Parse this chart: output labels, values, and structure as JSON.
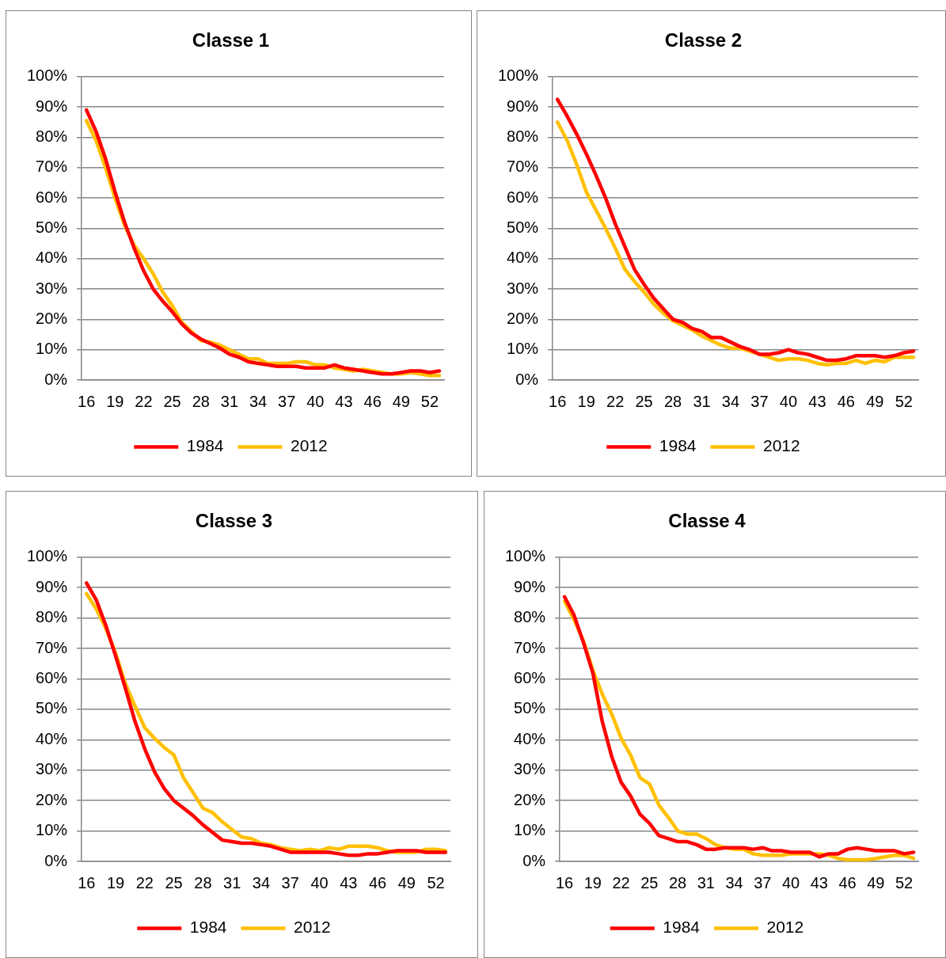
{
  "chart_data": [
    {
      "type": "line",
      "title": "Classe 1",
      "categories": [
        "16",
        null,
        null,
        "19",
        null,
        null,
        "22",
        null,
        null,
        "25",
        null,
        null,
        "28",
        null,
        null,
        "31",
        null,
        null,
        "34",
        null,
        null,
        "37",
        null,
        null,
        "40",
        null,
        null,
        "43",
        null,
        null,
        "46",
        null,
        null,
        "49",
        null,
        null,
        "52",
        null
      ],
      "series": [
        {
          "name": "1984",
          "color": "#ff0000",
          "values": [
            89,
            82,
            73,
            62,
            52,
            43.5,
            36,
            30,
            26,
            22.5,
            18.5,
            15.5,
            13.5,
            12,
            10.5,
            8.5,
            7.5,
            6,
            5.5,
            5,
            4.5,
            4.5,
            4.5,
            4,
            4,
            4,
            5,
            4,
            3.5,
            3,
            2.5,
            2,
            2,
            2.5,
            3,
            3,
            2.5,
            3
          ]
        },
        {
          "name": "2012",
          "color": "#ffc000",
          "values": [
            85.5,
            79,
            70,
            60,
            51,
            44.5,
            40,
            35,
            29,
            24.5,
            19,
            16,
            13,
            12.5,
            11.5,
            10,
            8.5,
            7,
            7,
            5.5,
            5.5,
            5.5,
            6,
            6,
            5,
            5,
            4,
            3.5,
            3,
            3.5,
            3,
            2.5,
            2,
            2,
            2.5,
            2,
            1.5,
            1.5
          ]
        }
      ],
      "ylim": [
        0,
        100
      ],
      "yticks": [
        {
          "value": 0,
          "label": "0%"
        },
        {
          "value": 10,
          "label": "10%"
        },
        {
          "value": 20,
          "label": "20%"
        },
        {
          "value": 30,
          "label": "30%"
        },
        {
          "value": 40,
          "label": "40%"
        },
        {
          "value": 50,
          "label": "50%"
        },
        {
          "value": 60,
          "label": "60%"
        },
        {
          "value": 70,
          "label": "70%"
        },
        {
          "value": 80,
          "label": "80%"
        },
        {
          "value": 90,
          "label": "90%"
        },
        {
          "value": 100,
          "label": "100%"
        }
      ],
      "grid": "y",
      "legend": "bottom"
    },
    {
      "type": "line",
      "title": "Classe 2",
      "categories": [
        "16",
        null,
        null,
        "19",
        null,
        null,
        "22",
        null,
        null,
        "25",
        null,
        null,
        "28",
        null,
        null,
        "31",
        null,
        null,
        "34",
        null,
        null,
        "37",
        null,
        null,
        "40",
        null,
        null,
        "43",
        null,
        null,
        "46",
        null,
        null,
        "49",
        null,
        null,
        "52",
        null
      ],
      "series": [
        {
          "name": "1984",
          "color": "#ff0000",
          "values": [
            92.5,
            87,
            81,
            74.5,
            67.5,
            60,
            51.5,
            44,
            36.5,
            31.5,
            27,
            23.5,
            20,
            19,
            17,
            16,
            14,
            14,
            12.5,
            11,
            10,
            8.5,
            8.5,
            9,
            10,
            9,
            8.5,
            7.5,
            6.5,
            6.5,
            7,
            8,
            8,
            8,
            7.5,
            8,
            9,
            9.5
          ]
        },
        {
          "name": "2012",
          "color": "#ffc000",
          "values": [
            85,
            79,
            71,
            62,
            56,
            50,
            43.5,
            36.5,
            32.5,
            29,
            25,
            22,
            19.5,
            18,
            16.5,
            14.5,
            13,
            11.5,
            10.5,
            10.5,
            9.5,
            8.5,
            7.5,
            6.5,
            7,
            7,
            6.5,
            5.5,
            5,
            5.5,
            5.5,
            6.5,
            5.5,
            6.5,
            6,
            7.5,
            7.5,
            7.5
          ]
        }
      ],
      "ylim": [
        0,
        100
      ],
      "yticks": [
        {
          "value": 0,
          "label": "0%"
        },
        {
          "value": 10,
          "label": "10%"
        },
        {
          "value": 20,
          "label": "20%"
        },
        {
          "value": 30,
          "label": "30%"
        },
        {
          "value": 40,
          "label": "40%"
        },
        {
          "value": 50,
          "label": "50%"
        },
        {
          "value": 60,
          "label": "60%"
        },
        {
          "value": 70,
          "label": "70%"
        },
        {
          "value": 80,
          "label": "80%"
        },
        {
          "value": 90,
          "label": "90%"
        },
        {
          "value": 100,
          "label": "100%"
        }
      ],
      "grid": "y",
      "legend": "bottom"
    },
    {
      "type": "line",
      "title": "Classe 3",
      "categories": [
        "16",
        null,
        null,
        "19",
        null,
        null,
        "22",
        null,
        null,
        "25",
        null,
        null,
        "28",
        null,
        null,
        "31",
        null,
        null,
        "34",
        null,
        null,
        "37",
        null,
        null,
        "40",
        null,
        null,
        "43",
        null,
        null,
        "46",
        null,
        null,
        "49",
        null,
        null,
        "52",
        null
      ],
      "series": [
        {
          "name": "1984",
          "color": "#ff0000",
          "values": [
            91.5,
            86,
            77.5,
            67.5,
            57,
            46,
            37,
            29.5,
            24,
            20,
            17.5,
            15,
            12,
            9.5,
            7,
            6.5,
            6,
            6,
            5.5,
            5,
            4,
            3,
            3,
            3,
            3,
            3,
            2.5,
            2,
            2,
            2.5,
            2.5,
            3,
            3.5,
            3.5,
            3.5,
            3,
            3,
            3
          ]
        },
        {
          "name": "2012",
          "color": "#ffc000",
          "values": [
            88,
            83,
            76.5,
            68.5,
            58.5,
            51,
            44,
            40.5,
            37.5,
            35,
            27.5,
            22.5,
            17.5,
            16,
            13,
            10.5,
            8,
            7.5,
            6,
            5.5,
            4.5,
            4,
            3.5,
            4,
            3.5,
            4.5,
            4,
            5,
            5,
            5,
            4.5,
            3.5,
            3,
            3,
            3,
            4,
            4,
            3.5
          ]
        }
      ],
      "ylim": [
        0,
        100
      ],
      "yticks": [
        {
          "value": 0,
          "label": "0%"
        },
        {
          "value": 10,
          "label": "10%"
        },
        {
          "value": 20,
          "label": "20%"
        },
        {
          "value": 30,
          "label": "30%"
        },
        {
          "value": 40,
          "label": "40%"
        },
        {
          "value": 50,
          "label": "50%"
        },
        {
          "value": 60,
          "label": "60%"
        },
        {
          "value": 70,
          "label": "70%"
        },
        {
          "value": 80,
          "label": "80%"
        },
        {
          "value": 90,
          "label": "90%"
        },
        {
          "value": 100,
          "label": "100%"
        }
      ],
      "grid": "y",
      "legend": "bottom"
    },
    {
      "type": "line",
      "title": "Classe 4",
      "categories": [
        "16",
        null,
        null,
        "19",
        null,
        null,
        "22",
        null,
        null,
        "25",
        null,
        null,
        "28",
        null,
        null,
        "31",
        null,
        null,
        "34",
        null,
        null,
        "37",
        null,
        null,
        "40",
        null,
        null,
        "43",
        null,
        null,
        "46",
        null,
        null,
        "49",
        null,
        null,
        "52",
        null
      ],
      "series": [
        {
          "name": "1984",
          "color": "#ff0000",
          "values": [
            87,
            81,
            72,
            62,
            46,
            34.5,
            26,
            21.5,
            15.5,
            12.5,
            8.5,
            7.5,
            6.5,
            6.5,
            5.5,
            4,
            4,
            4.5,
            4.5,
            4.5,
            4,
            4.5,
            3.5,
            3.5,
            3,
            3,
            3,
            1.5,
            2.5,
            2.5,
            4,
            4.5,
            4,
            3.5,
            3.5,
            3.5,
            2.5,
            3
          ]
        },
        {
          "name": "2012",
          "color": "#ffc000",
          "values": [
            85.5,
            79.5,
            72.5,
            63,
            55,
            48.5,
            40.5,
            35,
            27.5,
            25.5,
            18.5,
            14.5,
            10,
            9,
            9,
            7.5,
            5.5,
            4.5,
            4,
            4,
            2.5,
            2,
            2,
            2,
            2.5,
            2.5,
            2.5,
            2.5,
            2,
            1,
            0.5,
            0.5,
            0.5,
            1,
            1.5,
            2,
            2,
            1
          ]
        }
      ],
      "ylim": [
        0,
        100
      ],
      "yticks": [
        {
          "value": 0,
          "label": "0%"
        },
        {
          "value": 10,
          "label": "10%"
        },
        {
          "value": 20,
          "label": "20%"
        },
        {
          "value": 30,
          "label": "30%"
        },
        {
          "value": 40,
          "label": "40%"
        },
        {
          "value": 50,
          "label": "50%"
        },
        {
          "value": 60,
          "label": "60%"
        },
        {
          "value": 70,
          "label": "70%"
        },
        {
          "value": 80,
          "label": "80%"
        },
        {
          "value": 90,
          "label": "90%"
        },
        {
          "value": 100,
          "label": "100%"
        }
      ],
      "grid": "y",
      "legend": "bottom"
    }
  ]
}
